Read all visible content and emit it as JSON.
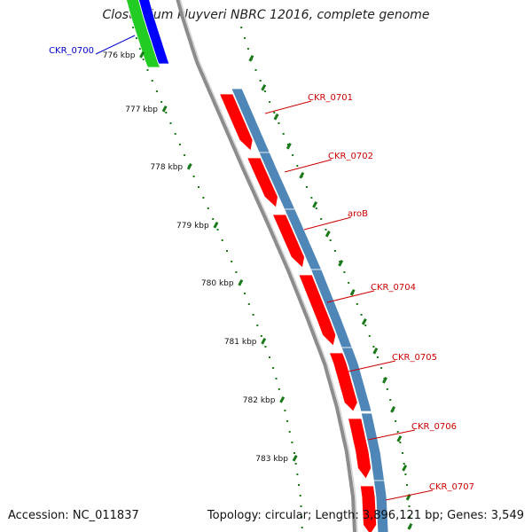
{
  "title": "Clostridium kluyveri NBRC 12016, complete genome",
  "footer": {
    "accession": "Accession: NC_011837",
    "summary": "Topology: circular; Length: 3,896,121 bp; Genes: 3,549"
  },
  "colors": {
    "background": "#ffffff",
    "backbone": "#8c8c8c",
    "cds_forward": "#4f86b8",
    "gene_forward": "#ff0000",
    "cds_reverse": "#0000ff",
    "gene_reverse": "#22cc22",
    "tick": "#1a7a1a",
    "label_forward": "#cc0000",
    "label_reverse": "#0000cc"
  },
  "scale": {
    "unit": "kbp",
    "major_ticks": [
      {
        "label": "776 kbp",
        "kbp": 776
      },
      {
        "label": "777 kbp",
        "kbp": 777
      },
      {
        "label": "778 kbp",
        "kbp": 778
      },
      {
        "label": "779 kbp",
        "kbp": 779
      },
      {
        "label": "780 kbp",
        "kbp": 780
      },
      {
        "label": "781 kbp",
        "kbp": 781
      },
      {
        "label": "782 kbp",
        "kbp": 782
      },
      {
        "label": "783 kbp",
        "kbp": 783
      }
    ]
  },
  "genes": [
    {
      "name": "CKR_0700",
      "strand": "reverse"
    },
    {
      "name": "CKR_0701",
      "strand": "forward"
    },
    {
      "name": "CKR_0702",
      "strand": "forward"
    },
    {
      "name": "aroB",
      "strand": "forward"
    },
    {
      "name": "CKR_0704",
      "strand": "forward"
    },
    {
      "name": "CKR_0705",
      "strand": "forward"
    },
    {
      "name": "CKR_0706",
      "strand": "forward"
    },
    {
      "name": "CKR_0707",
      "strand": "forward"
    }
  ]
}
